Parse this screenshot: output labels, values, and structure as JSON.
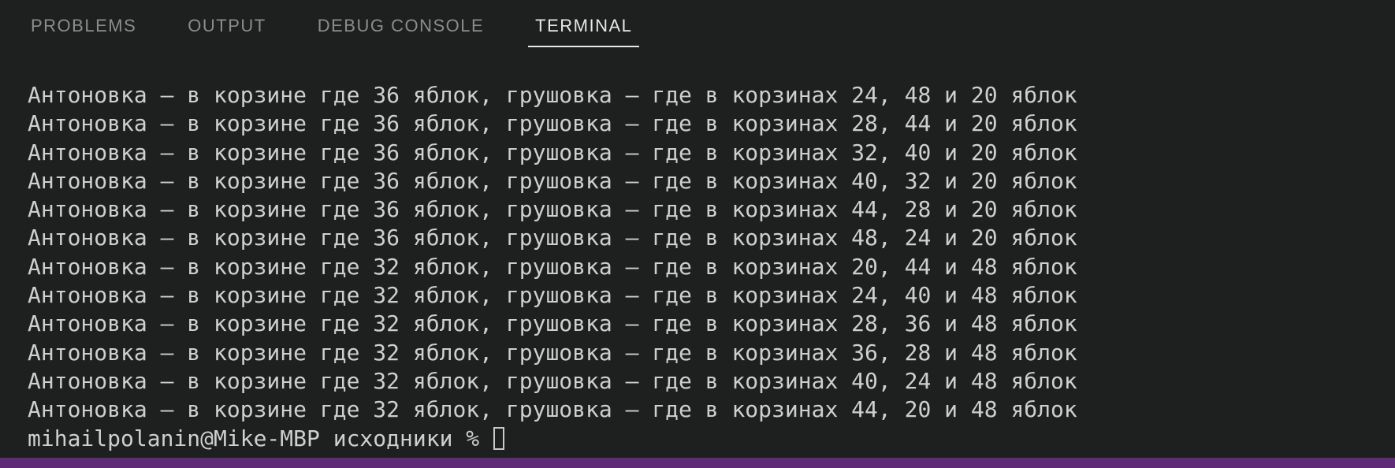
{
  "colors": {
    "background": "#1e1f1f",
    "text": "#cfcfcf",
    "tab_inactive": "#8c8c8c",
    "tab_active": "#e7e7e7",
    "status_bar": "#5f2b78",
    "cursor": "#c9c9c9"
  },
  "panel": {
    "tabs": [
      {
        "label": "PROBLEMS",
        "active": false
      },
      {
        "label": "OUTPUT",
        "active": false
      },
      {
        "label": "DEBUG CONSOLE",
        "active": false
      },
      {
        "label": "TERMINAL",
        "active": true
      }
    ]
  },
  "terminal": {
    "output_lines": [
      "Антоновка — в корзине где 36 яблок, грушовка — где в корзинах 24, 48 и 20 яблок",
      "Антоновка — в корзине где 36 яблок, грушовка — где в корзинах 28, 44 и 20 яблок",
      "Антоновка — в корзине где 36 яблок, грушовка — где в корзинах 32, 40 и 20 яблок",
      "Антоновка — в корзине где 36 яблок, грушовка — где в корзинах 40, 32 и 20 яблок",
      "Антоновка — в корзине где 36 яблок, грушовка — где в корзинах 44, 28 и 20 яблок",
      "Антоновка — в корзине где 36 яблок, грушовка — где в корзинах 48, 24 и 20 яблок",
      "Антоновка — в корзине где 32 яблок, грушовка — где в корзинах 20, 44 и 48 яблок",
      "Антоновка — в корзине где 32 яблок, грушовка — где в корзинах 24, 40 и 48 яблок",
      "Антоновка — в корзине где 32 яблок, грушовка — где в корзинах 28, 36 и 48 яблок",
      "Антоновка — в корзине где 32 яблок, грушовка — где в корзинах 36, 28 и 48 яблок",
      "Антоновка — в корзине где 32 яблок, грушовка — где в корзинах 40, 24 и 48 яблок",
      "Антоновка — в корзине где 32 яблок, грушовка — где в корзинах 44, 20 и 48 яблок"
    ],
    "prompt": "mihailpolanin@Mike-MBP исходники % ",
    "cursor_style": "block-outline"
  }
}
